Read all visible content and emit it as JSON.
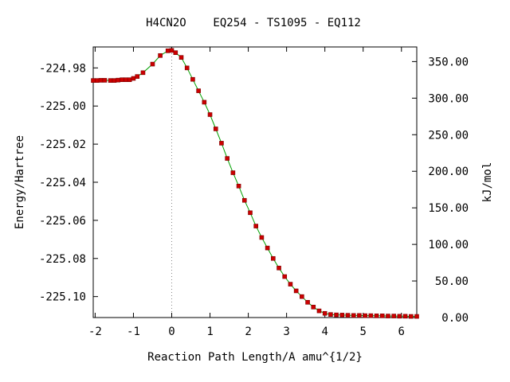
{
  "chart_data": {
    "type": "line",
    "title": "H4CN2O    EQ254 - TS1095 - EQ112",
    "xlabel": "Reaction Path Length/A amu^{1/2}",
    "ylabel": "Energy/Hartree",
    "y2label": "kJ/mol",
    "xlim": [
      -2.05,
      6.4
    ],
    "ylim": [
      -225.111,
      -224.969
    ],
    "y2lim": [
      0,
      370
    ],
    "x_ticks": [
      -2,
      -1,
      0,
      1,
      2,
      3,
      4,
      5,
      6
    ],
    "x_tick_labels": [
      "-2",
      "-1",
      "0",
      "1",
      "2",
      "3",
      "4",
      "5",
      "6"
    ],
    "y_ticks": [
      -224.98,
      -225.0,
      -225.02,
      -225.04,
      -225.06,
      -225.08,
      -225.1
    ],
    "y_tick_labels": [
      "-224.98",
      "-225.00",
      "-225.02",
      "-225.04",
      "-225.06",
      "-225.08",
      "-225.10"
    ],
    "y2_ticks": [
      0,
      50,
      100,
      150,
      200,
      250,
      300,
      350
    ],
    "y2_tick_labels": [
      "0.00",
      "50.00",
      "100.00",
      "150.00",
      "200.00",
      "250.00",
      "300.00",
      "350.00"
    ],
    "ts_marker_x": 0,
    "grid": false,
    "line_color": "#00a000",
    "marker_color": "#cc0000",
    "series": [
      {
        "x": [
          -2.05,
          -1.95,
          -1.85,
          -1.75,
          -1.6,
          -1.5,
          -1.4,
          -1.3,
          -1.2,
          -1.1,
          -1.0,
          -0.9,
          -0.75,
          -0.5,
          -0.3,
          -0.1,
          0.0,
          0.1,
          0.25,
          0.4,
          0.55,
          0.7,
          0.85,
          1.0,
          1.15,
          1.3,
          1.45,
          1.6,
          1.75,
          1.9,
          2.05,
          2.2,
          2.35,
          2.5,
          2.65,
          2.8,
          2.95,
          3.1,
          3.25,
          3.4,
          3.55,
          3.7,
          3.85,
          4.0,
          4.15,
          4.3,
          4.45,
          4.6,
          4.75,
          4.9,
          5.05,
          5.2,
          5.35,
          5.5,
          5.65,
          5.8,
          5.95,
          6.1,
          6.25,
          6.4
        ],
        "y": [
          -224.9866,
          -224.9866,
          -224.9865,
          -224.9865,
          -224.9866,
          -224.9866,
          -224.9864,
          -224.9862,
          -224.9862,
          -224.9862,
          -224.9855,
          -224.9845,
          -224.9825,
          -224.978,
          -224.9735,
          -224.971,
          -224.9708,
          -224.972,
          -224.9745,
          -224.98,
          -224.986,
          -224.992,
          -224.998,
          -225.0045,
          -225.012,
          -225.0195,
          -225.0275,
          -225.035,
          -225.042,
          -225.0495,
          -225.056,
          -225.063,
          -225.069,
          -225.0745,
          -225.08,
          -225.085,
          -225.0895,
          -225.0935,
          -225.097,
          -225.1,
          -225.103,
          -225.1055,
          -225.1075,
          -225.1088,
          -225.1094,
          -225.1096,
          -225.1097,
          -225.1098,
          -225.1099,
          -225.1099,
          -225.11,
          -225.11,
          -225.1101,
          -225.1101,
          -225.1102,
          -225.1102,
          -225.1103,
          -225.1103,
          -225.1104,
          -225.1104
        ]
      }
    ]
  }
}
